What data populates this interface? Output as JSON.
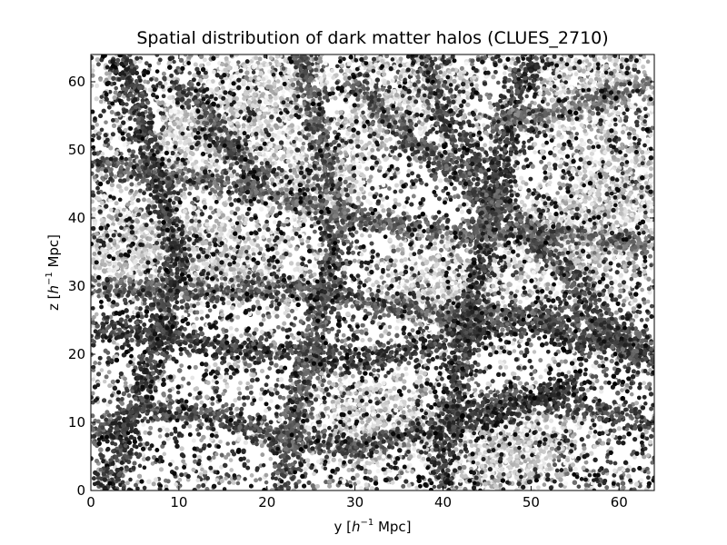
{
  "chart_data": {
    "type": "scatter",
    "title": "Spatial distribution of dark matter halos (CLUES_2710)",
    "xlabel": {
      "prefix": "y [",
      "symbol": "h",
      "exponent": "−1",
      "suffix": " Mpc]"
    },
    "ylabel": {
      "prefix": "z [",
      "symbol": "h",
      "exponent": "−1",
      "suffix": " Mpc]"
    },
    "xlim": [
      0,
      64
    ],
    "ylim": [
      0,
      64
    ],
    "xticks": [
      0,
      10,
      20,
      30,
      40,
      50,
      60
    ],
    "yticks": [
      0,
      10,
      20,
      30,
      40,
      50,
      60
    ],
    "grid": false,
    "colormap": "grayscale",
    "point_color_dark": "#000000",
    "point_color_light": "#ffffff",
    "filaments": [
      {
        "shade": 0.15,
        "points": [
          [
            0,
            8
          ],
          [
            6,
            12
          ],
          [
            14,
            11
          ],
          [
            22,
            8
          ],
          [
            30,
            6
          ],
          [
            40,
            10
          ],
          [
            48,
            14
          ],
          [
            56,
            12
          ],
          [
            64,
            10
          ]
        ]
      },
      {
        "shade": 0.1,
        "points": [
          [
            0,
            24
          ],
          [
            8,
            23
          ],
          [
            16,
            21
          ],
          [
            24,
            20
          ],
          [
            32,
            19
          ],
          [
            40,
            22
          ],
          [
            48,
            25
          ],
          [
            56,
            22
          ],
          [
            64,
            20
          ]
        ]
      },
      {
        "shade": 0.2,
        "points": [
          [
            0,
            30
          ],
          [
            10,
            29
          ],
          [
            20,
            30
          ],
          [
            30,
            28
          ],
          [
            40,
            26
          ],
          [
            50,
            26
          ],
          [
            58,
            24
          ],
          [
            64,
            22
          ]
        ]
      },
      {
        "shade": 0.1,
        "points": [
          [
            40,
            0
          ],
          [
            41,
            10
          ],
          [
            42,
            20
          ],
          [
            44,
            32
          ],
          [
            46,
            44
          ],
          [
            48,
            56
          ],
          [
            50,
            64
          ]
        ]
      },
      {
        "shade": 0.15,
        "points": [
          [
            38,
            64
          ],
          [
            40,
            55
          ],
          [
            44,
            48
          ],
          [
            48,
            40
          ],
          [
            54,
            32
          ],
          [
            60,
            22
          ],
          [
            64,
            18
          ]
        ]
      },
      {
        "shade": 0.2,
        "points": [
          [
            22,
            0
          ],
          [
            23,
            10
          ],
          [
            25,
            20
          ],
          [
            27,
            30
          ],
          [
            28,
            40
          ],
          [
            26,
            52
          ],
          [
            24,
            64
          ]
        ]
      },
      {
        "shade": 0.25,
        "points": [
          [
            0,
            48
          ],
          [
            10,
            46
          ],
          [
            20,
            44
          ],
          [
            30,
            40
          ],
          [
            40,
            38
          ],
          [
            50,
            38
          ],
          [
            64,
            36
          ]
        ]
      },
      {
        "shade": 0.1,
        "points": [
          [
            2,
            0
          ],
          [
            4,
            8
          ],
          [
            6,
            16
          ],
          [
            8,
            24
          ],
          [
            10,
            34
          ],
          [
            8,
            44
          ],
          [
            6,
            52
          ],
          [
            4,
            64
          ]
        ]
      },
      {
        "shade": 0.3,
        "points": [
          [
            46,
            54
          ],
          [
            54,
            56
          ],
          [
            64,
            60
          ]
        ]
      },
      {
        "shade": 0.2,
        "points": [
          [
            30,
            60
          ],
          [
            36,
            52
          ],
          [
            42,
            46
          ],
          [
            46,
            40
          ]
        ]
      },
      {
        "shade": 0.05,
        "points": [
          [
            44,
            10
          ],
          [
            48,
            12
          ],
          [
            52,
            14
          ],
          [
            56,
            16
          ]
        ]
      },
      {
        "shade": 0.15,
        "points": [
          [
            10,
            60
          ],
          [
            14,
            54
          ],
          [
            16,
            50
          ],
          [
            20,
            46
          ]
        ]
      }
    ],
    "light_voids": [
      [
        26,
        46
      ],
      [
        36,
        58
      ],
      [
        40,
        30
      ],
      [
        54,
        36
      ],
      [
        16,
        34
      ],
      [
        48,
        6
      ],
      [
        60,
        44
      ],
      [
        12,
        52
      ],
      [
        32,
        10
      ],
      [
        56,
        60
      ],
      [
        4,
        36
      ],
      [
        20,
        58
      ]
    ]
  }
}
